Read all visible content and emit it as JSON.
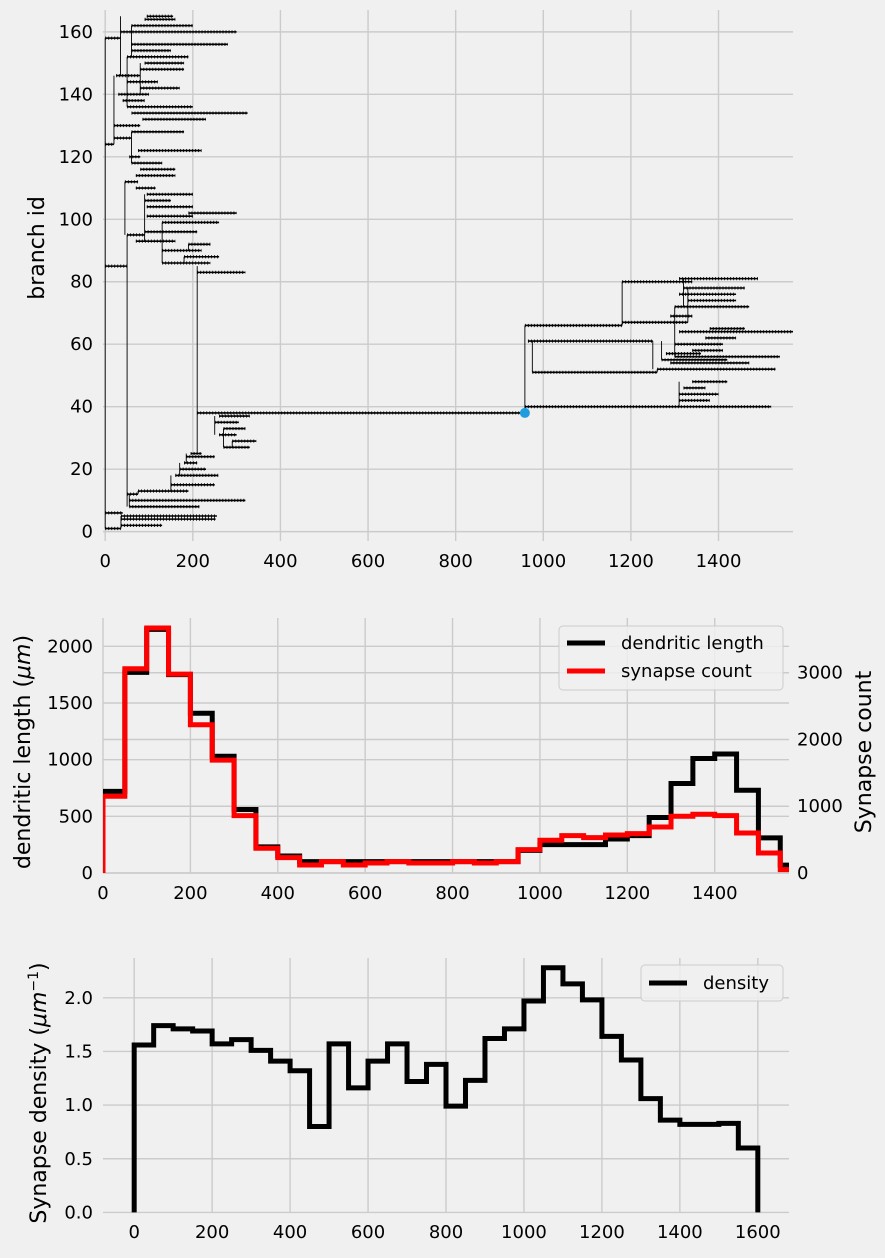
{
  "chart_data": [
    {
      "type": "line",
      "subtype": "dendrogram",
      "ylabel": "branch id",
      "xlim": [
        -5,
        1570
      ],
      "ylim": [
        -3,
        167
      ],
      "x_ticks": [
        0,
        200,
        400,
        600,
        800,
        1000,
        1200,
        1400
      ],
      "y_ticks": [
        0,
        20,
        40,
        60,
        80,
        100,
        120,
        140,
        160
      ],
      "grid": true,
      "colors": {
        "lines": "#000000",
        "marker": "#1f9be0"
      },
      "marker": {
        "x": 958,
        "y": 38
      },
      "branches": [
        {
          "y": 1,
          "x0": 0,
          "x1": 36
        },
        {
          "y": 2,
          "x0": 36,
          "x1": 130
        },
        {
          "y": 4,
          "x0": 36,
          "x1": 252
        },
        {
          "y": 5,
          "x0": 36,
          "x1": 255
        },
        {
          "y": 6,
          "x0": 0,
          "x1": 40
        },
        {
          "y": 8,
          "x0": 55,
          "x1": 215
        },
        {
          "y": 10,
          "x0": 55,
          "x1": 320
        },
        {
          "y": 12,
          "x0": 50,
          "x1": 75
        },
        {
          "y": 13,
          "x0": 75,
          "x1": 190
        },
        {
          "y": 15,
          "x0": 150,
          "x1": 250
        },
        {
          "y": 18,
          "x0": 160,
          "x1": 258
        },
        {
          "y": 20,
          "x0": 170,
          "x1": 230
        },
        {
          "y": 22,
          "x0": 180,
          "x1": 210
        },
        {
          "y": 24,
          "x0": 185,
          "x1": 250
        },
        {
          "y": 25,
          "x0": 195,
          "x1": 220
        },
        {
          "y": 27,
          "x0": 270,
          "x1": 330
        },
        {
          "y": 29,
          "x0": 290,
          "x1": 345
        },
        {
          "y": 31,
          "x0": 260,
          "x1": 300
        },
        {
          "y": 33,
          "x0": 270,
          "x1": 320
        },
        {
          "y": 35,
          "x0": 250,
          "x1": 305
        },
        {
          "y": 37,
          "x0": 260,
          "x1": 330
        },
        {
          "y": 38,
          "x0": 210,
          "x1": 958
        },
        {
          "y": 40,
          "x0": 958,
          "x1": 1520
        },
        {
          "y": 42,
          "x0": 1310,
          "x1": 1380
        },
        {
          "y": 44,
          "x0": 1310,
          "x1": 1400
        },
        {
          "y": 46,
          "x0": 1320,
          "x1": 1370
        },
        {
          "y": 48,
          "x0": 1340,
          "x1": 1420
        },
        {
          "y": 51,
          "x0": 975,
          "x1": 1260
        },
        {
          "y": 52,
          "x0": 1260,
          "x1": 1530
        },
        {
          "y": 54,
          "x0": 1290,
          "x1": 1470
        },
        {
          "y": 55,
          "x0": 1270,
          "x1": 1420
        },
        {
          "y": 56,
          "x0": 1300,
          "x1": 1540
        },
        {
          "y": 57,
          "x0": 1280,
          "x1": 1360
        },
        {
          "y": 58,
          "x0": 1340,
          "x1": 1410
        },
        {
          "y": 60,
          "x0": 1300,
          "x1": 1410
        },
        {
          "y": 61,
          "x0": 965,
          "x1": 1250
        },
        {
          "y": 62,
          "x0": 1370,
          "x1": 1440
        },
        {
          "y": 64,
          "x0": 1310,
          "x1": 1570
        },
        {
          "y": 65,
          "x0": 1380,
          "x1": 1460
        },
        {
          "y": 66,
          "x0": 958,
          "x1": 1180
        },
        {
          "y": 67,
          "x0": 1180,
          "x1": 1330
        },
        {
          "y": 69,
          "x0": 1290,
          "x1": 1340
        },
        {
          "y": 72,
          "x0": 1300,
          "x1": 1470
        },
        {
          "y": 74,
          "x0": 1330,
          "x1": 1440
        },
        {
          "y": 76,
          "x0": 1310,
          "x1": 1440
        },
        {
          "y": 78,
          "x0": 1320,
          "x1": 1460
        },
        {
          "y": 80,
          "x0": 1180,
          "x1": 1340
        },
        {
          "y": 81,
          "x0": 1310,
          "x1": 1490
        },
        {
          "y": 83,
          "x0": 210,
          "x1": 320
        },
        {
          "y": 85,
          "x0": 0,
          "x1": 50
        },
        {
          "y": 86,
          "x0": 130,
          "x1": 240
        },
        {
          "y": 88,
          "x0": 180,
          "x1": 260
        },
        {
          "y": 90,
          "x0": 130,
          "x1": 220
        },
        {
          "y": 92,
          "x0": 190,
          "x1": 240
        },
        {
          "y": 93,
          "x0": 70,
          "x1": 160
        },
        {
          "y": 95,
          "x0": 50,
          "x1": 90
        },
        {
          "y": 96,
          "x0": 90,
          "x1": 210
        },
        {
          "y": 99,
          "x0": 130,
          "x1": 260
        },
        {
          "y": 101,
          "x0": 95,
          "x1": 200
        },
        {
          "y": 102,
          "x0": 190,
          "x1": 300
        },
        {
          "y": 104,
          "x0": 95,
          "x1": 200
        },
        {
          "y": 106,
          "x0": 90,
          "x1": 150
        },
        {
          "y": 108,
          "x0": 95,
          "x1": 200
        },
        {
          "y": 110,
          "x0": 70,
          "x1": 115
        },
        {
          "y": 112,
          "x0": 45,
          "x1": 75
        },
        {
          "y": 114,
          "x0": 70,
          "x1": 160
        },
        {
          "y": 116,
          "x0": 80,
          "x1": 160
        },
        {
          "y": 118,
          "x0": 60,
          "x1": 130
        },
        {
          "y": 120,
          "x0": 55,
          "x1": 80
        },
        {
          "y": 122,
          "x0": 75,
          "x1": 220
        },
        {
          "y": 124,
          "x0": 0,
          "x1": 20
        },
        {
          "y": 126,
          "x0": 20,
          "x1": 60
        },
        {
          "y": 128,
          "x0": 60,
          "x1": 180
        },
        {
          "y": 130,
          "x0": 20,
          "x1": 80
        },
        {
          "y": 132,
          "x0": 85,
          "x1": 230
        },
        {
          "y": 134,
          "x0": 60,
          "x1": 325
        },
        {
          "y": 136,
          "x0": 50,
          "x1": 200
        },
        {
          "y": 138,
          "x0": 40,
          "x1": 90
        },
        {
          "y": 140,
          "x0": 30,
          "x1": 100
        },
        {
          "y": 142,
          "x0": 80,
          "x1": 170
        },
        {
          "y": 144,
          "x0": 50,
          "x1": 120
        },
        {
          "y": 146,
          "x0": 25,
          "x1": 80
        },
        {
          "y": 148,
          "x0": 80,
          "x1": 180
        },
        {
          "y": 150,
          "x0": 90,
          "x1": 180
        },
        {
          "y": 152,
          "x0": 50,
          "x1": 190
        },
        {
          "y": 154,
          "x0": 60,
          "x1": 150
        },
        {
          "y": 156,
          "x0": 60,
          "x1": 280
        },
        {
          "y": 158,
          "x0": 0,
          "x1": 35
        },
        {
          "y": 160,
          "x0": 35,
          "x1": 300
        },
        {
          "y": 162,
          "x0": 60,
          "x1": 200
        },
        {
          "y": 164,
          "x0": 90,
          "x1": 160
        },
        {
          "y": 165,
          "x0": 95,
          "x1": 155
        }
      ],
      "connectors": [
        {
          "x": 0,
          "y0": 1,
          "y1": 158
        },
        {
          "x": 36,
          "y0": 1,
          "y1": 5
        },
        {
          "x": 50,
          "y0": 8,
          "y1": 95
        },
        {
          "x": 55,
          "y0": 8,
          "y1": 12
        },
        {
          "x": 75,
          "y0": 12,
          "y1": 13
        },
        {
          "x": 150,
          "y0": 13,
          "y1": 18
        },
        {
          "x": 170,
          "y0": 18,
          "y1": 22
        },
        {
          "x": 185,
          "y0": 22,
          "y1": 25
        },
        {
          "x": 210,
          "y0": 25,
          "y1": 85
        },
        {
          "x": 250,
          "y0": 31,
          "y1": 37
        },
        {
          "x": 270,
          "y0": 27,
          "y1": 33
        },
        {
          "x": 290,
          "y0": 27,
          "y1": 29
        },
        {
          "x": 958,
          "y0": 38,
          "y1": 66
        },
        {
          "x": 975,
          "y0": 51,
          "y1": 61
        },
        {
          "x": 1180,
          "y0": 66,
          "y1": 80
        },
        {
          "x": 1250,
          "y0": 52,
          "y1": 61
        },
        {
          "x": 1260,
          "y0": 51,
          "y1": 52
        },
        {
          "x": 1270,
          "y0": 55,
          "y1": 61
        },
        {
          "x": 1300,
          "y0": 56,
          "y1": 72
        },
        {
          "x": 1310,
          "y0": 40,
          "y1": 48
        },
        {
          "x": 1320,
          "y0": 72,
          "y1": 81
        },
        {
          "x": 1330,
          "y0": 67,
          "y1": 78
        },
        {
          "x": 20,
          "y0": 124,
          "y1": 146
        },
        {
          "x": 45,
          "y0": 95,
          "y1": 112
        },
        {
          "x": 60,
          "y0": 118,
          "y1": 128
        },
        {
          "x": 90,
          "y0": 93,
          "y1": 108
        },
        {
          "x": 130,
          "y0": 86,
          "y1": 99
        },
        {
          "x": 180,
          "y0": 86,
          "y1": 88
        },
        {
          "x": 190,
          "y0": 90,
          "y1": 92
        },
        {
          "x": 35,
          "y0": 146,
          "y1": 165
        },
        {
          "x": 50,
          "y0": 136,
          "y1": 152
        },
        {
          "x": 80,
          "y0": 140,
          "y1": 150
        },
        {
          "x": 60,
          "y0": 152,
          "y1": 162
        }
      ]
    },
    {
      "type": "line",
      "subtype": "step",
      "ylabel": "dendritic length ($\\mu m$)",
      "ylabel_right": "Synapse count",
      "xlim": [
        0,
        1570
      ],
      "ylim": [
        0,
        2250
      ],
      "ylim_right": [
        0,
        3820
      ],
      "x_ticks": [
        0,
        200,
        400,
        600,
        800,
        1000,
        1200,
        1400
      ],
      "y_ticks": [
        0,
        500,
        1000,
        1500,
        2000
      ],
      "y_ticks_right": [
        0,
        1000,
        2000,
        3000
      ],
      "grid": true,
      "legend": "top-right",
      "bin_edges": [
        0,
        50,
        100,
        150,
        200,
        250,
        300,
        350,
        400,
        450,
        500,
        550,
        600,
        650,
        700,
        750,
        800,
        850,
        900,
        950,
        1000,
        1050,
        1100,
        1150,
        1200,
        1250,
        1300,
        1350,
        1400,
        1450,
        1500,
        1550,
        1600
      ],
      "series": [
        {
          "name": "dendritic length",
          "color": "#000000",
          "axis": "left",
          "values": [
            720,
            1770,
            2150,
            1750,
            1410,
            1030,
            560,
            230,
            150,
            100,
            100,
            100,
            100,
            100,
            100,
            100,
            100,
            100,
            100,
            200,
            250,
            250,
            250,
            300,
            330,
            490,
            790,
            1010,
            1050,
            730,
            310,
            70
          ]
        },
        {
          "name": "synapse count",
          "color": "#ff0000",
          "axis": "right",
          "values": [
            1150,
            3060,
            3670,
            2980,
            2220,
            1690,
            860,
            370,
            230,
            120,
            170,
            120,
            150,
            170,
            150,
            150,
            170,
            150,
            170,
            350,
            490,
            560,
            530,
            570,
            590,
            690,
            850,
            880,
            860,
            600,
            300,
            50
          ]
        }
      ]
    },
    {
      "type": "line",
      "subtype": "step",
      "ylabel": "Synapse density ($\\mu m^{-1}$)",
      "xlim": [
        -80,
        1680
      ],
      "ylim": [
        -0.08,
        2.38
      ],
      "x_ticks": [
        0,
        200,
        400,
        600,
        800,
        1000,
        1200,
        1400,
        1600
      ],
      "y_ticks": [
        0.0,
        0.5,
        1.0,
        1.5,
        2.0
      ],
      "y_tick_labels": [
        "0.0",
        "0.5",
        "1.0",
        "1.5",
        "2.0"
      ],
      "grid": true,
      "legend": "top-right",
      "bin_edges": [
        0,
        50,
        100,
        150,
        200,
        250,
        300,
        350,
        400,
        450,
        500,
        550,
        600,
        650,
        700,
        750,
        800,
        850,
        900,
        950,
        1000,
        1050,
        1100,
        1150,
        1200,
        1250,
        1300,
        1350,
        1400,
        1450,
        1500,
        1550,
        1600
      ],
      "series": [
        {
          "name": "density",
          "color": "#000000",
          "values": [
            1.56,
            1.74,
            1.71,
            1.69,
            1.57,
            1.61,
            1.51,
            1.41,
            1.32,
            0.8,
            1.57,
            1.16,
            1.41,
            1.57,
            1.22,
            1.38,
            0.99,
            1.23,
            1.62,
            1.71,
            1.97,
            2.28,
            2.13,
            1.98,
            1.64,
            1.42,
            1.06,
            0.86,
            0.82,
            0.82,
            0.83,
            0.6
          ]
        }
      ]
    }
  ]
}
